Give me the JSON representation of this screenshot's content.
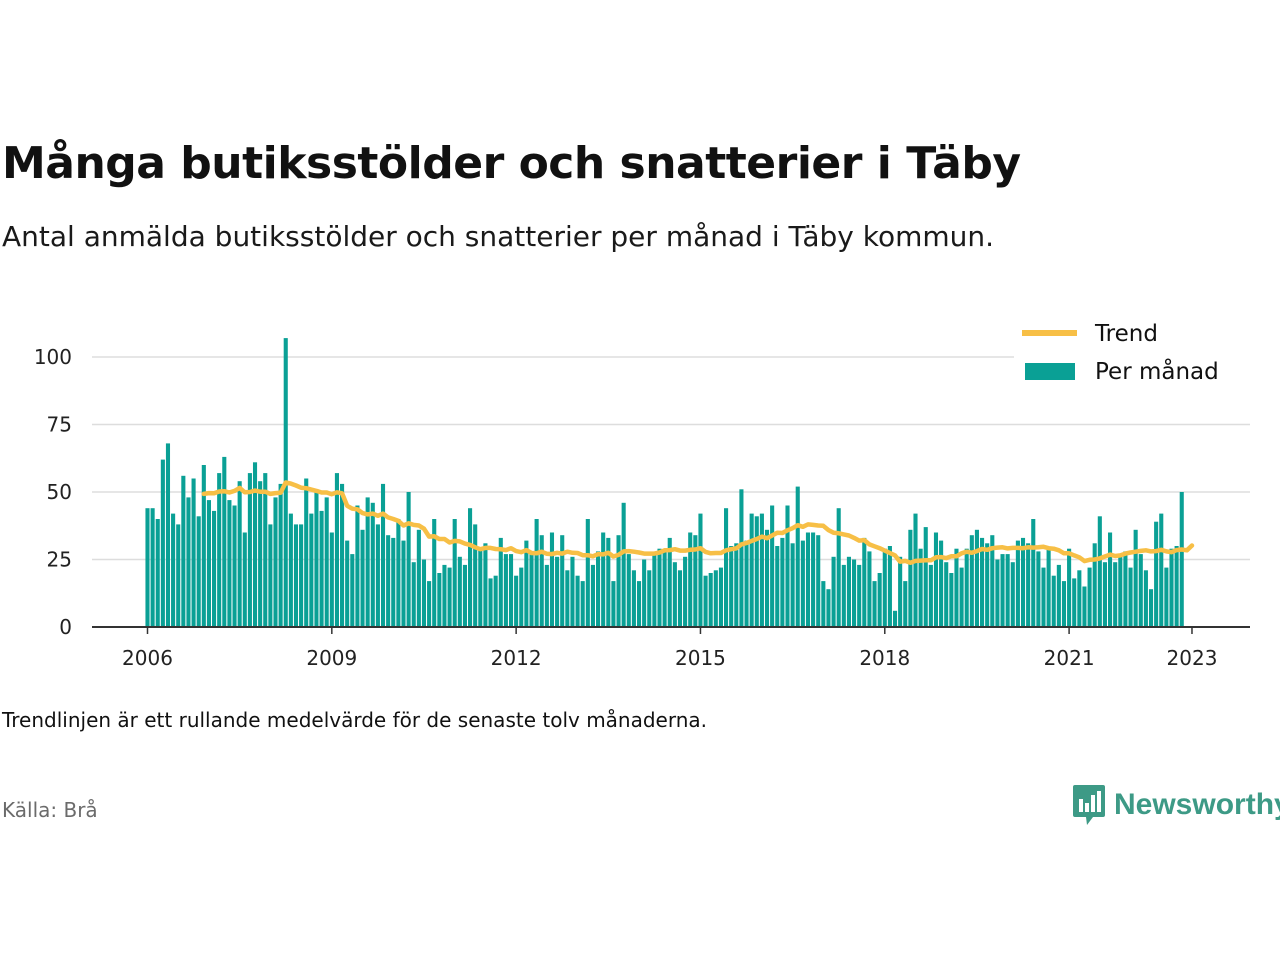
{
  "header": {
    "title": "Många butiksstölder och snatterier i Täby",
    "subtitle": "Antal anmälda butiksstölder och snatterier per månad i Täby kommun."
  },
  "footer": {
    "note": "Trendlinjen är ett rullande medelvärde för de senaste tolv månaderna.",
    "source": "Källa: Brå",
    "brand": "Newsworthy"
  },
  "colors": {
    "bars": "#0aa095",
    "trend": "#f7bf46",
    "grid": "#dddddd",
    "axis": "#333333",
    "brand": "#3d9a86"
  },
  "chart_data": {
    "type": "bar",
    "start": "2006-01",
    "ylim": [
      0,
      110
    ],
    "yticks": [
      0,
      25,
      50,
      75,
      100
    ],
    "xticks": [
      "2006",
      "2009",
      "2012",
      "2015",
      "2018",
      "2021",
      "2023"
    ],
    "grid": true,
    "legend_position": "top-right",
    "series": [
      {
        "name": "Per månad",
        "type": "bar",
        "values": [
          44,
          44,
          40,
          62,
          68,
          42,
          38,
          56,
          48,
          55,
          41,
          60,
          47,
          43,
          57,
          63,
          47,
          45,
          54,
          35,
          57,
          61,
          54,
          57,
          38,
          48,
          53,
          107,
          42,
          38,
          38,
          55,
          42,
          51,
          43,
          48,
          35,
          57,
          53,
          32,
          27,
          45,
          36,
          48,
          46,
          38,
          53,
          34,
          33,
          40,
          32,
          50,
          24,
          36,
          25,
          17,
          40,
          20,
          23,
          22,
          40,
          26,
          23,
          44,
          38,
          29,
          31,
          18,
          19,
          33,
          27,
          27,
          19,
          22,
          32,
          27,
          40,
          34,
          23,
          35,
          26,
          34,
          21,
          26,
          19,
          17,
          40,
          23,
          28,
          35,
          33,
          17,
          34,
          46,
          27,
          21,
          17,
          25,
          21,
          27,
          29,
          28,
          33,
          24,
          21,
          26,
          35,
          34,
          42,
          19,
          20,
          21,
          22,
          44,
          30,
          31,
          51,
          32,
          42,
          41,
          42,
          36,
          45,
          30,
          33,
          45,
          31,
          52,
          32,
          35,
          35,
          34,
          17,
          14,
          26,
          44,
          23,
          26,
          25,
          23,
          33,
          28,
          17,
          20,
          29,
          30,
          6,
          26,
          17,
          36,
          42,
          29,
          37,
          23,
          35,
          32,
          24,
          20,
          29,
          22,
          29,
          34,
          36,
          33,
          31,
          34,
          25,
          27,
          27,
          24,
          32,
          33,
          31,
          40,
          28,
          22,
          29,
          19,
          23,
          17,
          29,
          18,
          21,
          15,
          22,
          31,
          41,
          24,
          35,
          24,
          26,
          28,
          22,
          36,
          27,
          21,
          14,
          39,
          42,
          22,
          29,
          30,
          50
        ]
      },
      {
        "name": "Trend",
        "type": "line",
        "values": [
          null,
          null,
          null,
          null,
          null,
          null,
          null,
          null,
          null,
          null,
          null,
          49.3,
          49.6,
          49.5,
          50.2,
          50.3,
          49.8,
          50.4,
          51.5,
          49.9,
          50.0,
          50.5,
          50.1,
          50.1,
          49.3,
          49.6,
          49.7,
          53.5,
          53.1,
          52.4,
          51.6,
          51.4,
          50.9,
          50.4,
          49.8,
          49.8,
          49.2,
          49.9,
          49.5,
          44.9,
          43.8,
          43.6,
          42.2,
          41.7,
          42.0,
          41.2,
          42.0,
          40.6,
          40.0,
          39.3,
          37.6,
          38.4,
          37.8,
          37.6,
          36.4,
          33.5,
          33.6,
          32.6,
          32.6,
          31.3,
          31.9,
          31.7,
          30.9,
          30.4,
          29.5,
          28.8,
          29.3,
          29.3,
          28.9,
          28.8,
          28.5,
          29.2,
          28.1,
          27.7,
          28.5,
          27.4,
          27.3,
          27.9,
          27.1,
          27.0,
          27.5,
          27.2,
          27.9,
          27.5,
          27.4,
          26.6,
          26.6,
          26.2,
          27.0,
          26.9,
          27.5,
          26.1,
          26.7,
          28.0,
          28.1,
          27.9,
          27.6,
          27.2,
          27.2,
          27.2,
          27.6,
          28.4,
          28.5,
          28.8,
          28.3,
          28.3,
          28.6,
          28.7,
          29.2,
          27.8,
          27.3,
          27.4,
          27.4,
          28.4,
          28.8,
          29.1,
          30.6,
          31.1,
          31.9,
          32.6,
          33.5,
          32.9,
          33.9,
          34.9,
          34.8,
          35.8,
          36.6,
          37.7,
          37.1,
          38.0,
          37.8,
          37.6,
          37.5,
          35.9,
          34.9,
          34.7,
          34.3,
          33.9,
          33.0,
          32.0,
          32.2,
          30.6,
          29.9,
          29.2,
          28.3,
          27.4,
          26.5,
          24.2,
          24.5,
          23.8,
          24.5,
          24.6,
          24.7,
          24.7,
          25.8,
          25.9,
          25.5,
          26.2,
          26.2,
          27.3,
          27.9,
          27.5,
          28.1,
          28.9,
          28.6,
          29.2,
          29.4,
          29.5,
          29.1,
          29.3,
          29.3,
          29.2,
          29.5,
          29.4,
          29.5,
          29.7,
          29.2,
          29.0,
          28.4,
          27.3,
          27.3,
          26.5,
          25.8,
          24.4,
          24.9,
          25.0,
          25.4,
          26.1,
          26.8,
          26.3,
          26.5,
          27.2,
          27.6,
          27.9,
          28.2,
          28.4,
          28.0,
          28.1,
          28.6,
          28.0,
          27.7,
          28.5,
          28.7,
          28.4,
          30.2
        ]
      }
    ]
  }
}
